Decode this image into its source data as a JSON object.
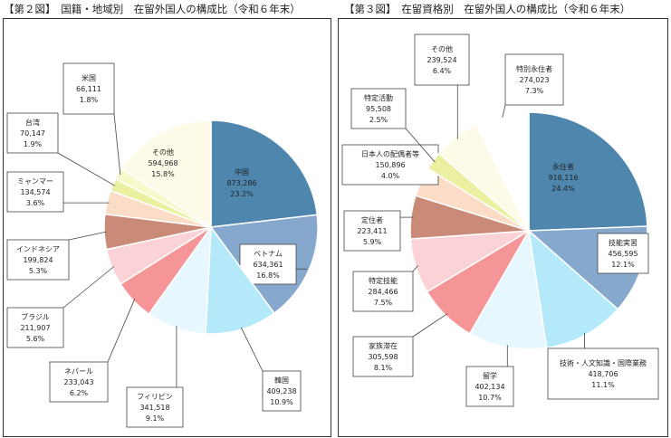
{
  "charts": [
    {
      "title": "【第２図】　国籍・地域別　在留外国人の構成比（令和６年末）",
      "chart_data": {
        "type": "pie",
        "slices": [
          {
            "name": "中国",
            "count": "873,286",
            "percent": 23.2,
            "color": "#4e86ae"
          },
          {
            "name": "ベトナム",
            "count": "634,361",
            "percent": 16.8,
            "color": "#86a8cc"
          },
          {
            "name": "韓国",
            "count": "409,238",
            "percent": 10.9,
            "color": "#b3e9f8"
          },
          {
            "name": "フィリピン",
            "count": "341,518",
            "percent": 9.1,
            "color": "#e6f7fd"
          },
          {
            "name": "ネパール",
            "count": "233,043",
            "percent": 6.2,
            "color": "#f59597"
          },
          {
            "name": "ブラジル",
            "count": "211,907",
            "percent": 5.6,
            "color": "#fbd2d6"
          },
          {
            "name": "インドネシア",
            "count": "199,824",
            "percent": 5.3,
            "color": "#c98a78"
          },
          {
            "name": "ミャンマー",
            "count": "134,574",
            "percent": 3.6,
            "color": "#fbdcc6"
          },
          {
            "name": "台湾",
            "count": "70,147",
            "percent": 1.9,
            "color": "#eaf0a0"
          },
          {
            "name": "米国",
            "count": "66,111",
            "percent": 1.8,
            "color": "#f7f9cc"
          },
          {
            "name": "その他",
            "count": "594,968",
            "percent": 15.8,
            "color": "#fdfbe8"
          }
        ]
      }
    },
    {
      "title": "【第３図】　在留資格別　在留外国人の構成比（令和６年末）",
      "chart_data": {
        "type": "pie",
        "slices": [
          {
            "name": "永住者",
            "count": "918,116",
            "percent": 24.4,
            "color": "#4e86ae"
          },
          {
            "name": "技能実習",
            "count": "456,595",
            "percent": 12.1,
            "color": "#86a8cc"
          },
          {
            "name": "技術・人文知識・国際業務",
            "count": "418,706",
            "percent": 11.1,
            "color": "#b3e9f8"
          },
          {
            "name": "留学",
            "count": "402,134",
            "percent": 10.7,
            "color": "#e6f7fd"
          },
          {
            "name": "家族滞在",
            "count": "305,598",
            "percent": 8.1,
            "color": "#f59597"
          },
          {
            "name": "特定技能",
            "count": "284,466",
            "percent": 7.5,
            "color": "#fbd2d6"
          },
          {
            "name": "定住者",
            "count": "223,411",
            "percent": 5.9,
            "color": "#c98a78"
          },
          {
            "name": "日本人の配偶者等",
            "count": "150,896",
            "percent": 4.0,
            "color": "#fbdcc6"
          },
          {
            "name": "特定活動",
            "count": "95,508",
            "percent": 2.5,
            "color": "#eaf0a0"
          },
          {
            "name": "その他",
            "count": "239,524",
            "percent": 6.4,
            "color": "#fdfbe8"
          },
          {
            "name": "特別永住者",
            "count": "274,023",
            "percent": 7.3,
            "color": "#ffffff"
          }
        ]
      }
    }
  ]
}
